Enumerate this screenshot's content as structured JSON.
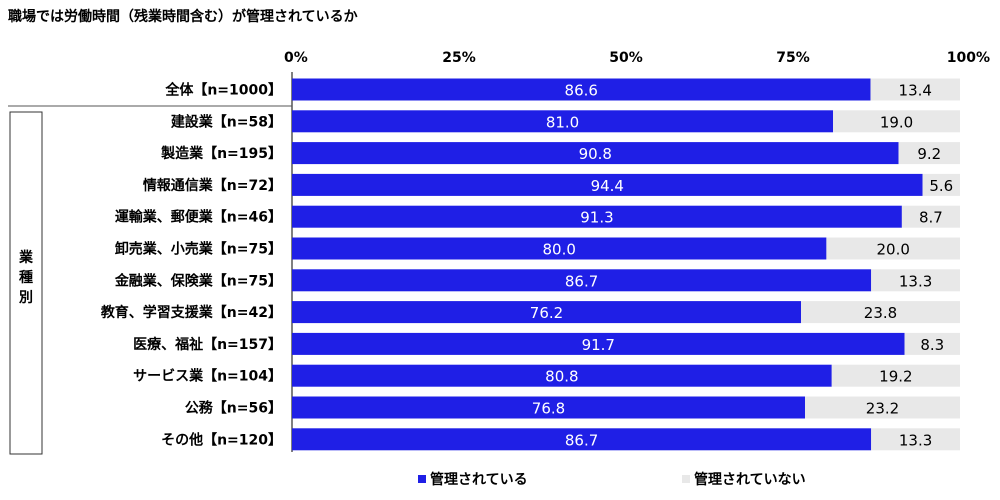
{
  "title": "職場では労働時間（残業時間含む）が管理されているか",
  "chart_data": {
    "type": "bar",
    "orientation": "horizontal",
    "stacked": true,
    "percent": true,
    "xlim": [
      0,
      100
    ],
    "xticks": [
      "0%",
      "25%",
      "50%",
      "75%",
      "100%"
    ],
    "group_label": "業種別",
    "categories": [
      "全体【n=1000】",
      "建設業【n=58】",
      "製造業【n=195】",
      "情報通信業【n=72】",
      "運輸業、郵便業【n=46】",
      "卸売業、小売業【n=75】",
      "金融業、保険業【n=75】",
      "教育、学習支援業【n=42】",
      "医療、福祉【n=157】",
      "サービス業【n=104】",
      "公務【n=56】",
      "その他【n=120】"
    ],
    "series": [
      {
        "name": "管理されている",
        "color": "#1f1fe6",
        "label_color": "#ffffff",
        "values": [
          86.6,
          81.0,
          90.8,
          94.4,
          91.3,
          80.0,
          86.7,
          76.2,
          91.7,
          80.8,
          76.8,
          86.7
        ]
      },
      {
        "name": "管理されていない",
        "color": "#e8e8e8",
        "label_color": "#000000",
        "values": [
          13.4,
          19.0,
          9.2,
          5.6,
          8.7,
          20.0,
          13.3,
          23.8,
          8.3,
          19.2,
          23.2,
          13.3
        ]
      }
    ],
    "value_labels": [
      [
        "86.6",
        "81.0",
        "90.8",
        "94.4",
        "91.3",
        "80.0",
        "86.7",
        "76.2",
        "91.7",
        "80.8",
        "76.8",
        "86.7"
      ],
      [
        "13.4",
        "19.0",
        "9.2",
        "5.6",
        "8.7",
        "20.0",
        "13.3",
        "23.8",
        "8.3",
        "19.2",
        "23.2",
        "13.3"
      ]
    ],
    "legend_position": "bottom"
  }
}
